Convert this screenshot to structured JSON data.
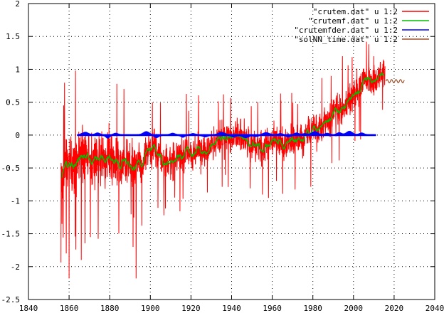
{
  "chart_data": {
    "type": "line",
    "title": "",
    "xlabel": "",
    "ylabel": "",
    "xlim": [
      1840,
      2040
    ],
    "ylim": [
      -2.5,
      2
    ],
    "x_ticks": [
      1840,
      1860,
      1880,
      1900,
      1920,
      1940,
      1960,
      1980,
      2000,
      2020,
      2040
    ],
    "x_tick_labels": [
      "1840",
      "1860",
      "1880",
      "1900",
      "1920",
      "1940",
      "1960",
      "1980",
      "2000",
      "2020",
      "2040"
    ],
    "y_ticks": [
      -2.5,
      -2,
      -1.5,
      -1,
      -0.5,
      0,
      0.5,
      1,
      1.5,
      2
    ],
    "y_tick_labels": [
      "-2.5",
      "-2",
      "-1.5",
      "-1",
      "-0.5",
      "0",
      "0.5",
      "1",
      "1.5",
      "2"
    ],
    "grid": true,
    "legend_position": "top-right",
    "series": [
      {
        "name": "\"crutem.dat\" u 1:2",
        "color": "#ff0000",
        "style": "monthly-noisy-line",
        "x_range": [
          1856,
          2015.5
        ],
        "baseline_knots": [
          [
            1856,
            -0.55
          ],
          [
            1860,
            -0.45
          ],
          [
            1865,
            -0.35
          ],
          [
            1870,
            -0.3
          ],
          [
            1875,
            -0.35
          ],
          [
            1880,
            -0.35
          ],
          [
            1885,
            -0.45
          ],
          [
            1890,
            -0.45
          ],
          [
            1895,
            -0.4
          ],
          [
            1900,
            -0.2
          ],
          [
            1905,
            -0.35
          ],
          [
            1910,
            -0.45
          ],
          [
            1915,
            -0.3
          ],
          [
            1920,
            -0.3
          ],
          [
            1925,
            -0.25
          ],
          [
            1930,
            -0.15
          ],
          [
            1935,
            -0.05
          ],
          [
            1940,
            0.0
          ],
          [
            1945,
            -0.05
          ],
          [
            1950,
            -0.15
          ],
          [
            1955,
            -0.2
          ],
          [
            1960,
            -0.1
          ],
          [
            1965,
            -0.15
          ],
          [
            1970,
            -0.1
          ],
          [
            1975,
            -0.1
          ],
          [
            1980,
            0.15
          ],
          [
            1985,
            0.1
          ],
          [
            1990,
            0.35
          ],
          [
            1995,
            0.4
          ],
          [
            2000,
            0.6
          ],
          [
            2005,
            0.85
          ],
          [
            2010,
            0.8
          ],
          [
            2015,
            0.95
          ]
        ],
        "amplitude_knots": [
          [
            1856,
            0.55
          ],
          [
            1880,
            0.5
          ],
          [
            1900,
            0.35
          ],
          [
            1950,
            0.3
          ],
          [
            1980,
            0.32
          ],
          [
            2015,
            0.3
          ]
        ],
        "extremes": [
          [
            1856.5,
            -1.35
          ],
          [
            1857.3,
            0.45
          ],
          [
            1858.6,
            -1.8
          ],
          [
            1860,
            -2.18
          ],
          [
            1863.2,
            0.98
          ],
          [
            1866,
            -1.9
          ],
          [
            1870.5,
            -1.55
          ],
          [
            1893,
            -2.18
          ],
          [
            1891.5,
            -1.7
          ],
          [
            1901,
            0.5
          ],
          [
            1912,
            -0.95
          ],
          [
            1936,
            0.62
          ],
          [
            1989,
            0.9
          ],
          [
            2007.5,
            1.38
          ],
          [
            2010,
            1.2
          ]
        ]
      },
      {
        "name": "\"crutemf.dat\" u 1:2",
        "color": "#00c000",
        "style": "smoothed-line",
        "x_range": [
          1856.5,
          2015
        ]
      },
      {
        "name": "\"crutemfder.dat\" u 1:2",
        "color": "#0000ff",
        "style": "filled-band",
        "x_range": [
          1864,
          2011
        ],
        "centre": 0.0,
        "bumps": [
          [
            1868,
            0.035,
            2.0
          ],
          [
            1874,
            0.025,
            1.5
          ],
          [
            1879,
            -0.04,
            1.2
          ],
          [
            1883,
            0.02,
            1.5
          ],
          [
            1898,
            0.045,
            2.0
          ],
          [
            1903,
            -0.03,
            1.5
          ],
          [
            1911,
            0.02,
            1.5
          ],
          [
            1916,
            -0.025,
            1.2
          ],
          [
            1921,
            0.015,
            1.5
          ],
          [
            1927,
            -0.02,
            1.5
          ],
          [
            1935,
            0.035,
            2.0
          ],
          [
            1941,
            -0.02,
            1.5
          ],
          [
            1947,
            -0.03,
            2.0
          ],
          [
            1952,
            -0.015,
            1.5
          ],
          [
            1957,
            0.03,
            2.0
          ],
          [
            1964,
            0.015,
            1.5
          ],
          [
            1968,
            -0.02,
            1.5
          ],
          [
            1972,
            0.025,
            1.5
          ],
          [
            1976,
            0.015,
            1.5
          ],
          [
            1981,
            0.045,
            2.0
          ],
          [
            1987,
            0.02,
            1.5
          ],
          [
            1993,
            0.03,
            1.5
          ],
          [
            1998,
            0.05,
            2.0
          ],
          [
            2004,
            0.025,
            1.5
          ]
        ],
        "band_half_width": 0.012
      },
      {
        "name": "\"solNN_time.dat\" u 1:2",
        "color": "#a0522d",
        "style": "wavy-line",
        "x_range": [
          2016,
          2025
        ],
        "center": 0.82,
        "amplitude": 0.025,
        "period": 2.2
      }
    ]
  }
}
